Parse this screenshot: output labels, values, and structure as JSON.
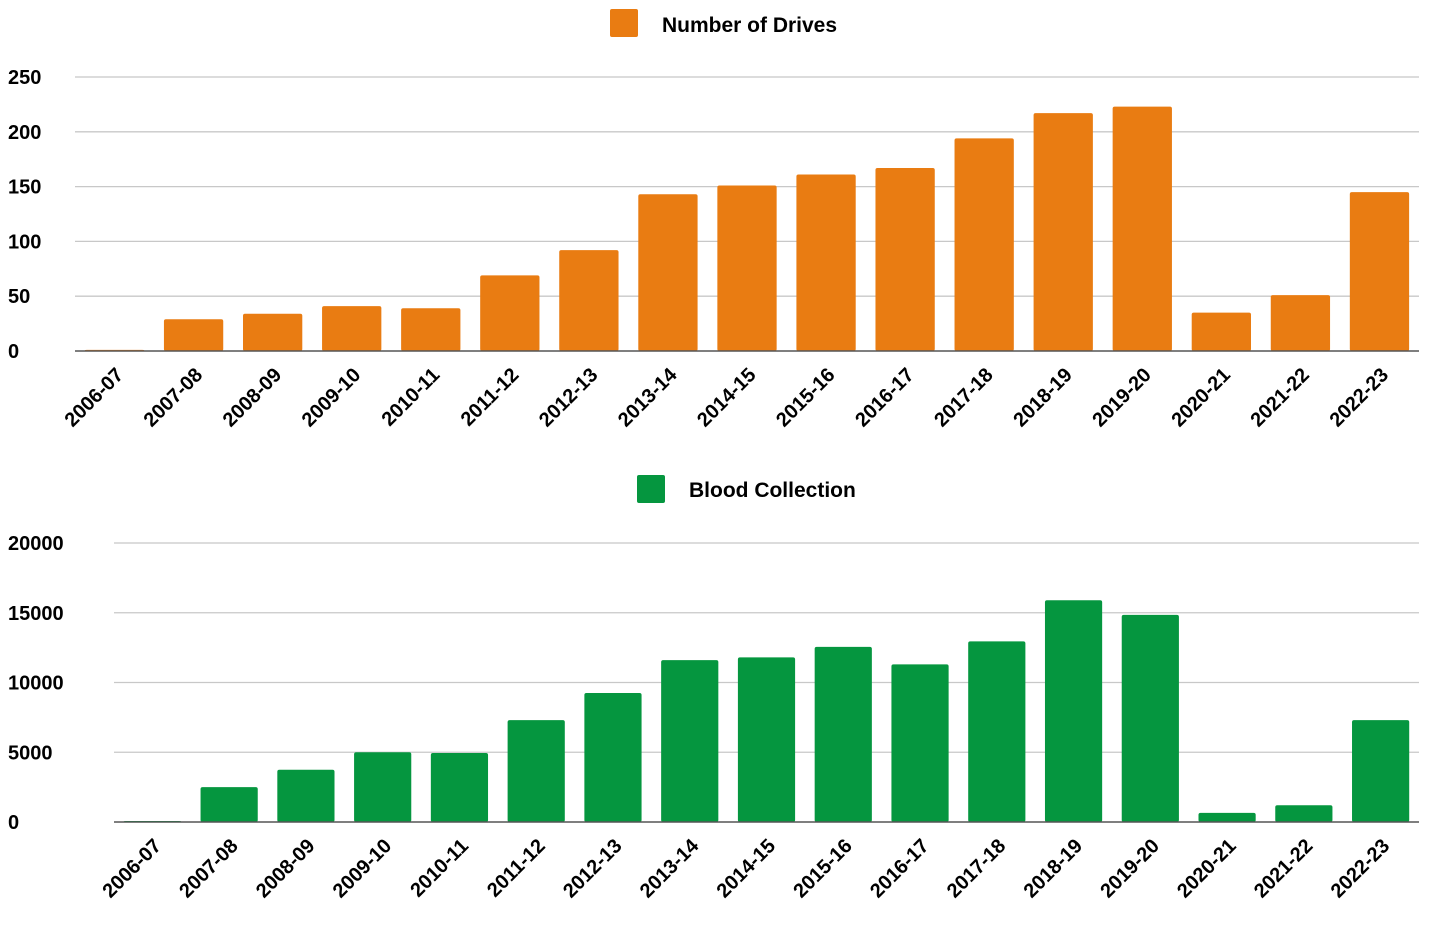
{
  "chart_data": [
    {
      "type": "bar",
      "legend": "Number of Drives",
      "legend_position": "top-center",
      "color": "#E97C12",
      "grid": true,
      "categories": [
        "2006-07",
        "2007-08",
        "2008-09",
        "2009-10",
        "2010-11",
        "2011-12",
        "2012-13",
        "2013-14",
        "2014-15",
        "2015-16",
        "2016-17",
        "2017-18",
        "2018-19",
        "2019-20",
        "2020-21",
        "2021-22",
        "2022-23"
      ],
      "series": [
        {
          "name": "Number of Drives",
          "values": [
            1,
            29,
            34,
            41,
            39,
            69,
            92,
            143,
            151,
            161,
            167,
            194,
            217,
            223,
            35,
            51,
            145
          ]
        }
      ],
      "ylim": [
        0,
        250
      ],
      "yticks": [
        "0",
        "50",
        "100",
        "150",
        "200",
        "250"
      ]
    },
    {
      "type": "bar",
      "legend": "Blood Collection",
      "legend_position": "top-center",
      "color": "#05963F",
      "grid": true,
      "categories": [
        "2006-07",
        "2007-08",
        "2008-09",
        "2009-10",
        "2010-11",
        "2011-12",
        "2012-13",
        "2013-14",
        "2014-15",
        "2015-16",
        "2016-17",
        "2017-18",
        "2018-19",
        "2019-20",
        "2020-21",
        "2021-22",
        "2022-23"
      ],
      "series": [
        {
          "name": "Blood Collection",
          "values": [
            50,
            2500,
            3750,
            5000,
            4950,
            7300,
            9250,
            11600,
            11800,
            12550,
            11300,
            12950,
            15900,
            14850,
            650,
            1200,
            7300
          ]
        }
      ],
      "ylim": [
        0,
        20000
      ],
      "yticks": [
        "0",
        "5000",
        "10000",
        "15000",
        "20000"
      ]
    }
  ]
}
